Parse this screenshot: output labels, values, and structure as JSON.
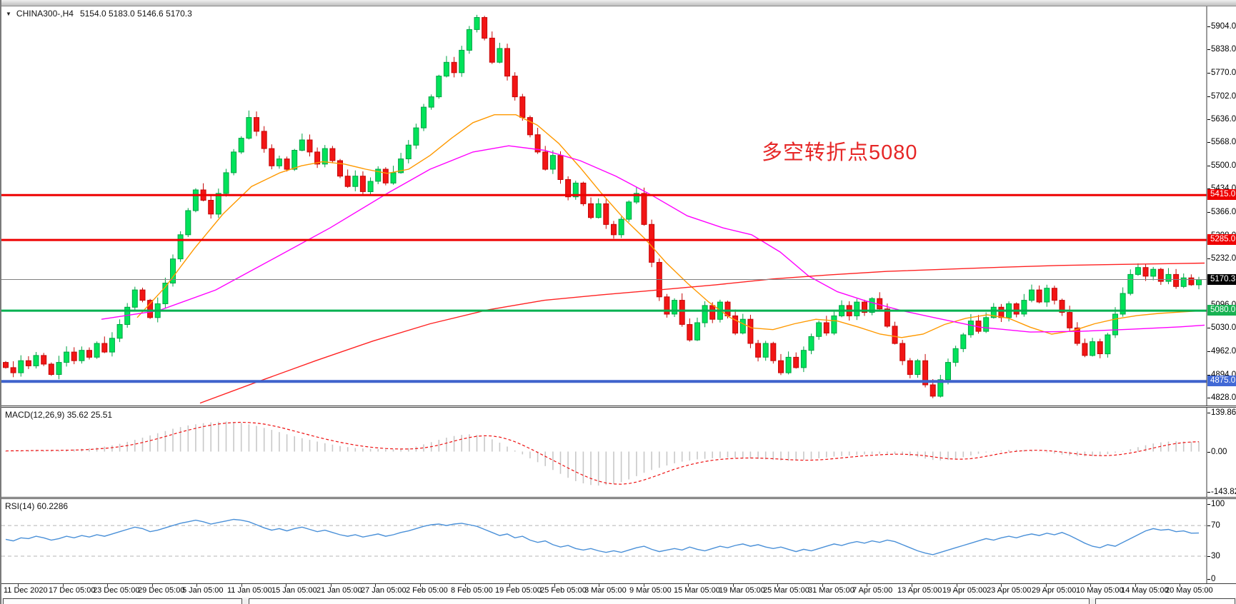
{
  "window": {
    "symbol": "CHINA300-,H4",
    "ohlc": "5154.0 5183.0 5146.6 5170.3",
    "dropdown_icon": "▼"
  },
  "annotation": {
    "text": "多空转折点5080",
    "color": "#e62626"
  },
  "indicators": {
    "macd_label": "MACD(12,26,9) 35.62 25.51",
    "rsi_label": "RSI(14) 60.2286"
  },
  "time_axis": {
    "labels": [
      "11 Dec 2020",
      "17 Dec 05:00",
      "23 Dec 05:00",
      "29 Dec 05:00",
      "5 Jan 05:00",
      "11 Jan 05:00",
      "15 Jan 05:00",
      "21 Jan 05:00",
      "27 Jan 05:00",
      "2 Feb 05:00",
      "8 Feb 05:00",
      "19 Feb 05:00",
      "25 Feb 05:00",
      "3 Mar 05:00",
      "9 Mar 05:00",
      "15 Mar 05:00",
      "19 Mar 05:00",
      "25 Mar 05:00",
      "31 Mar 05:00",
      "7 Apr 05:00",
      "13 Apr 05:00",
      "19 Apr 05:00",
      "23 Apr 05:00",
      "29 Apr 05:00",
      "10 May 05:00",
      "14 May 05:00",
      "20 May 05:00"
    ]
  },
  "status_bar": {
    "segments": [
      [
        2,
        337
      ],
      [
        346,
        1523
      ],
      [
        1531,
        1727
      ]
    ]
  },
  "chart_data": [
    {
      "type": "candlestick",
      "name": "CHINA300-,H4",
      "timeframe": "H4",
      "current_bar": {
        "open": 5154.0,
        "high": 5183.0,
        "low": 5146.6,
        "close": 5170.3
      },
      "first_open": 4930,
      "closes": [
        4915,
        4900,
        4935,
        4920,
        4950,
        4925,
        4895,
        4930,
        4960,
        4935,
        4965,
        4945,
        4985,
        4960,
        5000,
        5040,
        5090,
        5140,
        5110,
        5060,
        5100,
        5160,
        5230,
        5300,
        5370,
        5430,
        5400,
        5360,
        5420,
        5480,
        5540,
        5580,
        5640,
        5600,
        5550,
        5500,
        5520,
        5490,
        5545,
        5575,
        5540,
        5505,
        5550,
        5515,
        5470,
        5440,
        5470,
        5425,
        5455,
        5490,
        5450,
        5480,
        5520,
        5560,
        5610,
        5670,
        5700,
        5760,
        5800,
        5770,
        5835,
        5895,
        5930,
        5870,
        5800,
        5840,
        5760,
        5700,
        5640,
        5590,
        5540,
        5490,
        5530,
        5460,
        5410,
        5450,
        5390,
        5350,
        5390,
        5330,
        5300,
        5345,
        5395,
        5420,
        5330,
        5220,
        5120,
        5070,
        5110,
        5040,
        4995,
        5045,
        5095,
        5055,
        5105,
        5065,
        5015,
        5055,
        4985,
        4945,
        4985,
        4935,
        4900,
        4945,
        4915,
        4965,
        5005,
        5045,
        5015,
        5065,
        5095,
        5065,
        5105,
        5075,
        5115,
        5085,
        5035,
        4985,
        4935,
        4895,
        4935,
        4865,
        4832,
        4880,
        4930,
        4970,
        5010,
        5050,
        5020,
        5060,
        5090,
        5060,
        5100,
        5070,
        5110,
        5140,
        5105,
        5145,
        5110,
        5075,
        5030,
        4985,
        4950,
        4990,
        4955,
        5010,
        5070,
        5130,
        5185,
        5205,
        5180,
        5200,
        5165,
        5185,
        5150,
        5175,
        5155,
        5170.3
      ],
      "ylim": [
        4805,
        5962
      ],
      "yticks": [
        "5904.0",
        "5838.0",
        "5770.0",
        "5702.0",
        "5636.0",
        "5568.0",
        "5500.0",
        "5434.0",
        "5366.0",
        "5298.0",
        "5232.0",
        "5096.0",
        "5030.0",
        "4962.0",
        "4894.0",
        "4828.0"
      ],
      "ytick_values": [
        5904,
        5838,
        5770,
        5702,
        5636,
        5568,
        5500,
        5434,
        5366,
        5298,
        5232,
        5096,
        5030,
        4962,
        4894,
        4828
      ],
      "levels": [
        {
          "price": 5415.0,
          "label": "5415.0",
          "color": "#ee0000",
          "width": 3,
          "badge_bg": "#ee0000",
          "badge_fg": "#ffffff"
        },
        {
          "price": 5285.0,
          "label": "5285.0",
          "color": "#ee0000",
          "width": 3,
          "badge_bg": "#ee0000",
          "badge_fg": "#ffffff"
        },
        {
          "price": 5170.3,
          "label": "5170.3",
          "color": "#808080",
          "width": 1,
          "badge_bg": "#000000",
          "badge_fg": "#ffffff"
        },
        {
          "price": 5080.0,
          "label": "5080.0",
          "color": "#00b050",
          "width": 3,
          "badge_bg": "#17b252",
          "badge_fg": "#ffffff"
        },
        {
          "price": 4875.0,
          "label": "4875.0",
          "color": "#3f63cc",
          "width": 4,
          "badge_bg": "#4169d6",
          "badge_fg": "#ffffff"
        }
      ],
      "moving_averages": [
        {
          "name": "ma-fast-orange",
          "color": "#ff9900",
          "points": [
            [
              190,
              5060
            ],
            [
              230,
              5150
            ],
            [
              270,
              5260
            ],
            [
              310,
              5360
            ],
            [
              350,
              5440
            ],
            [
              390,
              5480
            ],
            [
              420,
              5500
            ],
            [
              450,
              5512
            ],
            [
              480,
              5505
            ],
            [
              510,
              5490
            ],
            [
              540,
              5478
            ],
            [
              570,
              5490
            ],
            [
              600,
              5530
            ],
            [
              630,
              5580
            ],
            [
              660,
              5625
            ],
            [
              690,
              5648
            ],
            [
              720,
              5648
            ],
            [
              750,
              5618
            ],
            [
              780,
              5565
            ],
            [
              810,
              5495
            ],
            [
              840,
              5420
            ],
            [
              870,
              5350
            ],
            [
              900,
              5290
            ],
            [
              930,
              5220
            ],
            [
              960,
              5160
            ],
            [
              990,
              5105
            ],
            [
              1020,
              5060
            ],
            [
              1050,
              5030
            ],
            [
              1080,
              5025
            ],
            [
              1110,
              5042
            ],
            [
              1140,
              5055
            ],
            [
              1170,
              5050
            ],
            [
              1200,
              5032
            ],
            [
              1230,
              5012
            ],
            [
              1260,
              5002
            ],
            [
              1290,
              5012
            ],
            [
              1320,
              5040
            ],
            [
              1350,
              5058
            ],
            [
              1380,
              5068
            ],
            [
              1410,
              5058
            ],
            [
              1440,
              5032
            ],
            [
              1470,
              5012
            ],
            [
              1500,
              5022
            ],
            [
              1530,
              5042
            ],
            [
              1560,
              5056
            ],
            [
              1590,
              5066
            ],
            [
              1620,
              5072
            ],
            [
              1650,
              5076
            ],
            [
              1684,
              5080
            ]
          ]
        },
        {
          "name": "ma-mid-magenta",
          "color": "#ff00ff",
          "points": [
            [
              140,
              5055
            ],
            [
              220,
              5080
            ],
            [
              300,
              5140
            ],
            [
              380,
              5230
            ],
            [
              460,
              5320
            ],
            [
              540,
              5420
            ],
            [
              600,
              5490
            ],
            [
              660,
              5540
            ],
            [
              710,
              5558
            ],
            [
              760,
              5545
            ],
            [
              810,
              5515
            ],
            [
              860,
              5470
            ],
            [
              910,
              5415
            ],
            [
              960,
              5355
            ],
            [
              1010,
              5320
            ],
            [
              1050,
              5300
            ],
            [
              1090,
              5250
            ],
            [
              1130,
              5180
            ],
            [
              1170,
              5135
            ],
            [
              1210,
              5108
            ],
            [
              1260,
              5080
            ],
            [
              1310,
              5058
            ],
            [
              1370,
              5032
            ],
            [
              1440,
              5018
            ],
            [
              1510,
              5020
            ],
            [
              1580,
              5026
            ],
            [
              1650,
              5033
            ],
            [
              1684,
              5038
            ]
          ]
        },
        {
          "name": "ma-slow-red",
          "color": "#ff2222",
          "points": [
            [
              278,
              4812
            ],
            [
              360,
              4875
            ],
            [
              440,
              4935
            ],
            [
              520,
              4992
            ],
            [
              600,
              5042
            ],
            [
              680,
              5082
            ],
            [
              760,
              5110
            ],
            [
              840,
              5126
            ],
            [
              920,
              5140
            ],
            [
              1000,
              5155
            ],
            [
              1080,
              5172
            ],
            [
              1160,
              5184
            ],
            [
              1240,
              5194
            ],
            [
              1320,
              5200
            ],
            [
              1400,
              5206
            ],
            [
              1480,
              5211
            ],
            [
              1560,
              5214
            ],
            [
              1684,
              5218
            ]
          ]
        }
      ],
      "bull_color": "#00e35a",
      "bull_stroke": "#00a344",
      "bear_color": "#f21515",
      "bear_stroke": "#c40707"
    },
    {
      "type": "bar",
      "name": "MACD(12,26,9)",
      "label": "MACD(12,26,9) 35.62 25.51",
      "current_values": [
        35.62,
        25.51
      ],
      "values": [
        2,
        4,
        3,
        5,
        6,
        4,
        3,
        5,
        7,
        8,
        10,
        12,
        15,
        18,
        22,
        28,
        35,
        42,
        50,
        58,
        66,
        74,
        82,
        88,
        94,
        98,
        102,
        105,
        107,
        108,
        106,
        103,
        98,
        92,
        85,
        78,
        70,
        62,
        55,
        48,
        42,
        36,
        30,
        25,
        20,
        16,
        13,
        11,
        10,
        9,
        8,
        8,
        9,
        12,
        18,
        26,
        34,
        42,
        50,
        56,
        60,
        62,
        60,
        54,
        44,
        32,
        18,
        4,
        -10,
        -24,
        -38,
        -52,
        -66,
        -80,
        -94,
        -106,
        -114,
        -120,
        -122,
        -120,
        -116,
        -110,
        -100,
        -88,
        -76,
        -66,
        -58,
        -50,
        -42,
        -36,
        -32,
        -28,
        -26,
        -24,
        -23,
        -22,
        -22,
        -23,
        -24,
        -26,
        -28,
        -30,
        -32,
        -33,
        -32,
        -30,
        -27,
        -24,
        -21,
        -18,
        -16,
        -14,
        -12,
        -10,
        -9,
        -8,
        -8,
        -9,
        -12,
        -16,
        -20,
        -25,
        -30,
        -32,
        -30,
        -26,
        -20,
        -14,
        -8,
        -3,
        1,
        4,
        6,
        7,
        6,
        4,
        1,
        -3,
        -7,
        -11,
        -14,
        -16,
        -17,
        -16,
        -13,
        -9,
        -4,
        2,
        9,
        16,
        23,
        29,
        33,
        36,
        37,
        36,
        35,
        35.6
      ],
      "ylim": [
        -162.7,
        157.7
      ],
      "yticks": [
        "139.86",
        "0.00",
        "-143.82"
      ],
      "ytick_values": [
        139.86,
        0,
        -143.82
      ],
      "hist_color": "#c8c8c8",
      "signal_color": "#ee1111"
    },
    {
      "type": "line",
      "name": "RSI(14)",
      "label": "RSI(14) 60.2286",
      "current": 60.2286,
      "values": [
        52,
        50,
        54,
        53,
        56,
        54,
        51,
        53,
        56,
        54,
        57,
        55,
        58,
        56,
        59,
        62,
        65,
        68,
        66,
        62,
        64,
        67,
        70,
        73,
        75,
        77,
        75,
        72,
        74,
        76,
        78,
        77,
        75,
        71,
        67,
        64,
        66,
        63,
        66,
        68,
        65,
        62,
        64,
        61,
        58,
        56,
        58,
        55,
        57,
        59,
        56,
        58,
        61,
        63,
        66,
        69,
        71,
        72,
        70,
        72,
        73,
        71,
        69,
        65,
        61,
        57,
        59,
        54,
        56,
        51,
        48,
        50,
        45,
        42,
        44,
        40,
        38,
        40,
        37,
        35,
        37,
        35,
        38,
        41,
        43,
        39,
        36,
        38,
        40,
        38,
        42,
        39,
        37,
        40,
        43,
        41,
        44,
        46,
        43,
        45,
        42,
        40,
        42,
        39,
        36,
        39,
        37,
        40,
        43,
        46,
        44,
        47,
        49,
        47,
        50,
        48,
        51,
        49,
        45,
        41,
        37,
        34,
        32,
        35,
        38,
        41,
        44,
        47,
        50,
        53,
        51,
        54,
        56,
        54,
        57,
        59,
        57,
        60,
        58,
        61,
        57,
        52,
        47,
        43,
        41,
        45,
        43,
        48,
        53,
        58,
        63,
        66,
        64,
        65,
        62,
        63,
        60,
        60.2
      ],
      "ylim": [
        -5.4,
        104.6
      ],
      "yticks": [
        "100",
        "70",
        "30",
        "0"
      ],
      "ytick_values": [
        100,
        70,
        30,
        0
      ],
      "levels": [
        70,
        30
      ],
      "line_color": "#4a90d8",
      "level_color": "#b4b4b4"
    }
  ]
}
